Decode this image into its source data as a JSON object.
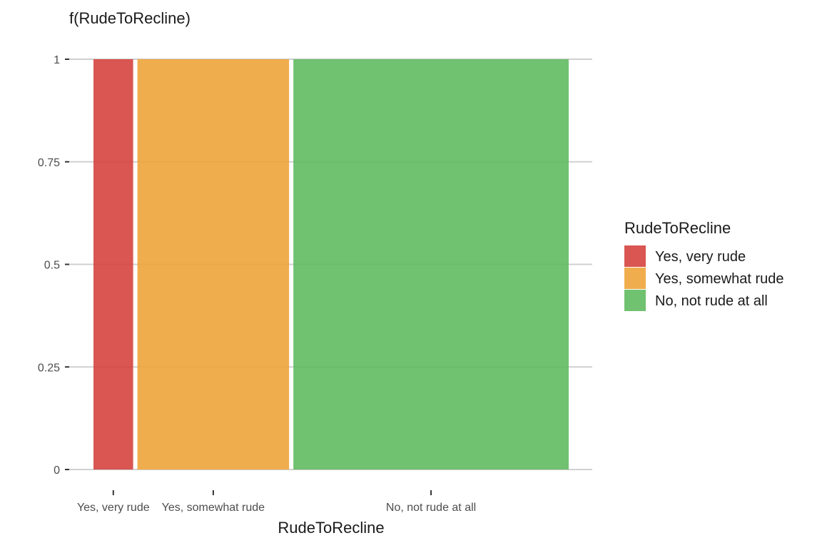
{
  "chart_data": {
    "type": "bar",
    "variant": "mosaic",
    "title": "",
    "ylabel": "f(RudeToRecline)",
    "xlabel": "RudeToRecline",
    "categories": [
      "Yes, very rude",
      "Yes, somewhat rude",
      "No, not rude at all"
    ],
    "proportions": [
      0.085,
      0.325,
      0.59
    ],
    "values": [
      1,
      1,
      1
    ],
    "ylim": [
      0,
      1
    ],
    "yticks": [
      0,
      0.25,
      0.5,
      0.75,
      1
    ],
    "ytick_labels": [
      "0",
      "0.25",
      "0.5",
      "0.75",
      "1"
    ],
    "colors": [
      "#D43F3A",
      "#EEA236",
      "#5CB85C"
    ],
    "grid": true,
    "legend": {
      "title": "RudeToRecline",
      "placement": "right",
      "entries": [
        "Yes, very rude",
        "Yes, somewhat rude",
        "No, not rude at all"
      ]
    }
  }
}
